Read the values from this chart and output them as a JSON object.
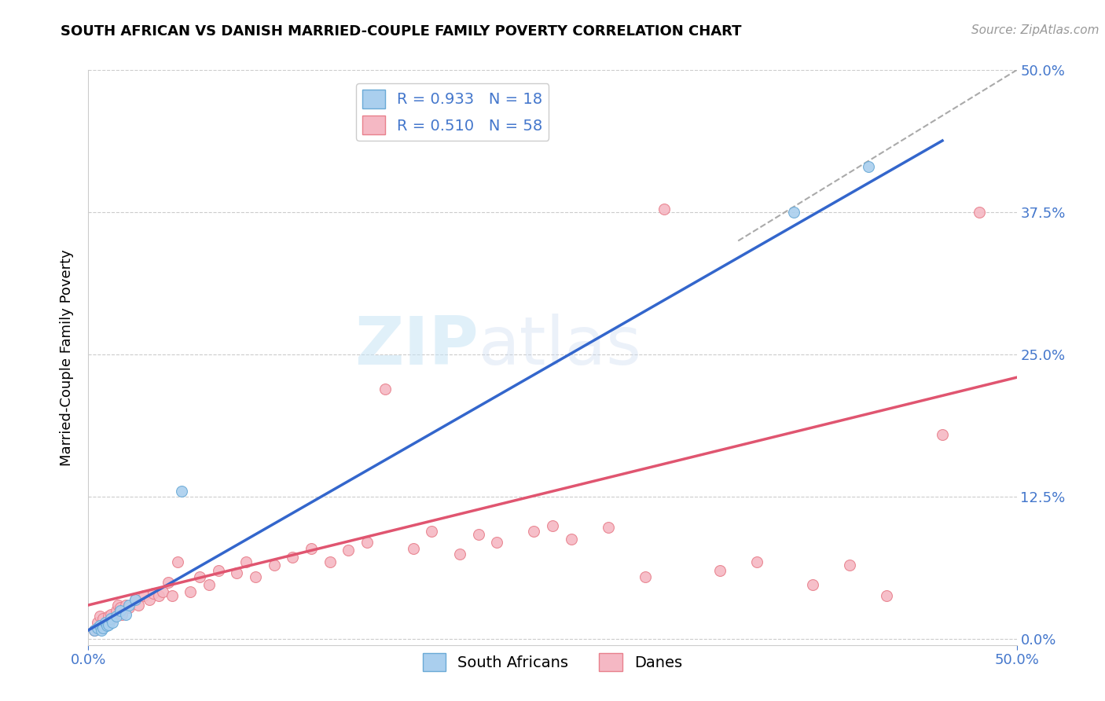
{
  "title": "SOUTH AFRICAN VS DANISH MARRIED-COUPLE FAMILY POVERTY CORRELATION CHART",
  "source": "Source: ZipAtlas.com",
  "ylabel": "Married-Couple Family Poverty",
  "xlim": [
    0,
    0.5
  ],
  "ylim": [
    -0.005,
    0.5
  ],
  "ytick_positions": [
    0.0,
    0.125,
    0.25,
    0.375,
    0.5
  ],
  "ytick_labels": [
    "0.0%",
    "12.5%",
    "25.0%",
    "37.5%",
    "50.0%"
  ],
  "grid_color": "#cccccc",
  "background_color": "#ffffff",
  "watermark_zip": "ZIP",
  "watermark_atlas": "atlas",
  "sa_color_fill": "#aacfee",
  "sa_edge": "#6aaad6",
  "dane_color_fill": "#f5b8c4",
  "dane_edge": "#e8808c",
  "sa_R": 0.933,
  "sa_N": 18,
  "dane_R": 0.51,
  "dane_N": 58,
  "sa_line_color": "#3366cc",
  "dane_line_color": "#e05570",
  "diag_line_color": "#aaaaaa",
  "sa_scatter_x": [
    0.003,
    0.005,
    0.006,
    0.007,
    0.008,
    0.009,
    0.01,
    0.011,
    0.012,
    0.013,
    0.015,
    0.017,
    0.02,
    0.022,
    0.025,
    0.05,
    0.38,
    0.42
  ],
  "sa_scatter_y": [
    0.008,
    0.01,
    0.012,
    0.008,
    0.01,
    0.015,
    0.012,
    0.013,
    0.018,
    0.015,
    0.02,
    0.025,
    0.022,
    0.03,
    0.035,
    0.13,
    0.375,
    0.415
  ],
  "dane_scatter_x": [
    0.003,
    0.005,
    0.006,
    0.007,
    0.008,
    0.009,
    0.01,
    0.011,
    0.012,
    0.013,
    0.015,
    0.016,
    0.017,
    0.018,
    0.02,
    0.022,
    0.025,
    0.027,
    0.03,
    0.033,
    0.035,
    0.038,
    0.04,
    0.043,
    0.045,
    0.048,
    0.055,
    0.06,
    0.065,
    0.07,
    0.08,
    0.085,
    0.09,
    0.1,
    0.11,
    0.12,
    0.13,
    0.14,
    0.15,
    0.16,
    0.175,
    0.185,
    0.2,
    0.21,
    0.22,
    0.24,
    0.25,
    0.26,
    0.28,
    0.3,
    0.31,
    0.34,
    0.36,
    0.39,
    0.41,
    0.43,
    0.46,
    0.48
  ],
  "dane_scatter_y": [
    0.008,
    0.015,
    0.02,
    0.01,
    0.018,
    0.012,
    0.015,
    0.02,
    0.022,
    0.018,
    0.025,
    0.03,
    0.028,
    0.022,
    0.03,
    0.028,
    0.035,
    0.03,
    0.038,
    0.035,
    0.04,
    0.038,
    0.042,
    0.05,
    0.038,
    0.068,
    0.042,
    0.055,
    0.048,
    0.06,
    0.058,
    0.068,
    0.055,
    0.065,
    0.072,
    0.08,
    0.068,
    0.078,
    0.085,
    0.22,
    0.08,
    0.095,
    0.075,
    0.092,
    0.085,
    0.095,
    0.1,
    0.088,
    0.098,
    0.055,
    0.378,
    0.06,
    0.068,
    0.048,
    0.065,
    0.038,
    0.18,
    0.375
  ],
  "sa_line_x": [
    0.0,
    0.46
  ],
  "sa_line_y": [
    0.008,
    0.438
  ],
  "dane_line_x": [
    0.0,
    0.5
  ],
  "dane_line_y": [
    0.03,
    0.23
  ],
  "diag_line_x": [
    0.35,
    0.5
  ],
  "diag_line_y": [
    0.35,
    0.5
  ],
  "marker_size": 100
}
